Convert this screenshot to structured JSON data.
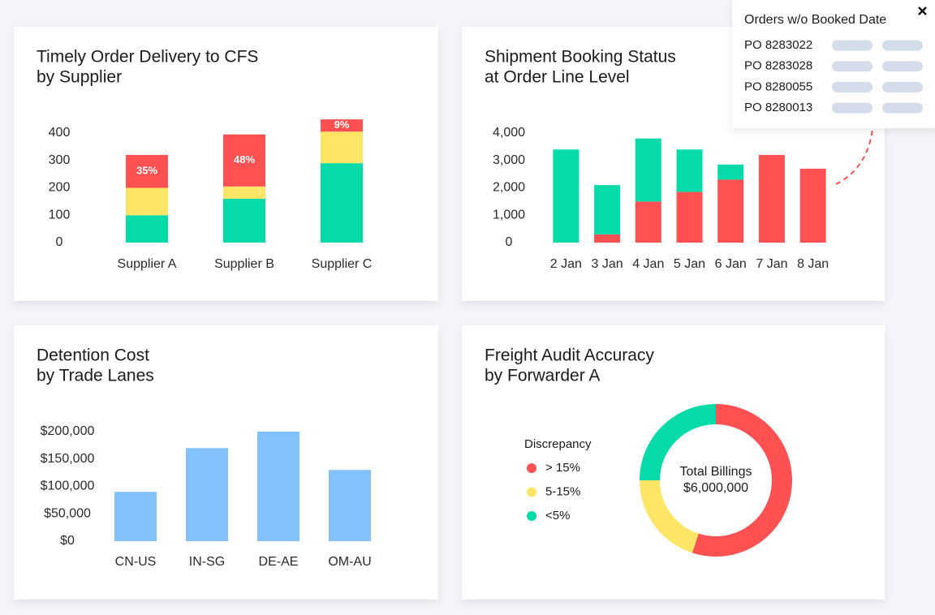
{
  "chart_data": [
    {
      "type": "stacked_bar",
      "title": [
        "Timely Order Delivery to CFS",
        "by Supplier"
      ],
      "categories": [
        "Supplier A",
        "Supplier B",
        "Supplier C"
      ],
      "series": [
        {
          "color": "#05dba9",
          "values": [
            100,
            160,
            290
          ]
        },
        {
          "color": "#ffe566",
          "values": [
            100,
            45,
            115
          ]
        },
        {
          "color": "#ff5152",
          "values": [
            120,
            190,
            45
          ]
        }
      ],
      "bar_labels": [
        "35%",
        "48%",
        "9%"
      ],
      "ylim": [
        0,
        400
      ],
      "yticks": [
        0,
        100,
        200,
        300,
        400
      ]
    },
    {
      "type": "stacked_bar",
      "title": [
        "Shipment Booking Status",
        "at Order Line Level"
      ],
      "categories": [
        "2 Jan",
        "3 Jan",
        "4 Jan",
        "5 Jan",
        "6 Jan",
        "7 Jan",
        "8 Jan"
      ],
      "series": [
        {
          "color": "#ff5152",
          "values": [
            0,
            300,
            1500,
            1850,
            2300,
            3200,
            2700
          ]
        },
        {
          "color": "#05dba9",
          "values": [
            3400,
            1800,
            2300,
            1550,
            550,
            0,
            0
          ]
        }
      ],
      "ylim": [
        0,
        4000
      ],
      "yticks": [
        0,
        {
          "value": 1000,
          "label": "1,000"
        },
        {
          "value": 2000,
          "label": "2,000"
        },
        {
          "value": 3000,
          "label": "3,000"
        },
        {
          "value": 4000,
          "label": "4,000"
        }
      ]
    },
    {
      "type": "bar",
      "title": [
        "Detention Cost",
        "by Trade Lanes"
      ],
      "categories": [
        "CN-US",
        "IN-SG",
        "DE-AE",
        "OM-AU"
      ],
      "values": [
        90000,
        170000,
        200000,
        130000
      ],
      "color": "#82c1fc",
      "ylim": [
        0,
        200000
      ],
      "yticks": [
        {
          "value": 0,
          "label": "$0"
        },
        {
          "value": 50000,
          "label": "$50,000"
        },
        {
          "value": 100000,
          "label": "$100,000"
        },
        {
          "value": 150000,
          "label": "$150,000"
        },
        {
          "value": 200000,
          "label": "$200,000"
        }
      ]
    },
    {
      "type": "donut",
      "title": [
        "Freight Audit Accuracy",
        "by Forwarder A"
      ],
      "legend_title": "Discrepancy",
      "categories": [
        "> 15%",
        "5-15%",
        "<5%"
      ],
      "values": [
        55,
        20,
        25
      ],
      "colors": [
        "#ff5152",
        "#ffe566",
        "#05dba9"
      ],
      "center_label": [
        "Total Billings",
        "$6,000,000"
      ]
    }
  ],
  "popup": {
    "title": "Orders w/o Booked Date",
    "rows": [
      "PO 8283022",
      "PO 8283028",
      "PO 8280055",
      "PO 8280013"
    ]
  }
}
